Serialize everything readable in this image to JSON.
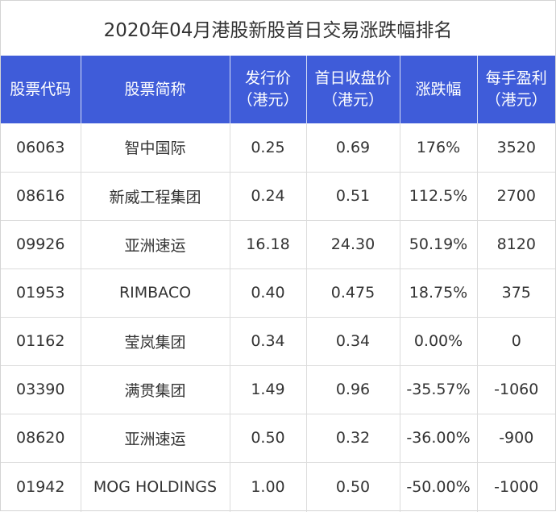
{
  "title": "2020年04月港股新股首日交易涨跌幅排名",
  "columns": [
    {
      "line1": "股票代码",
      "line2": ""
    },
    {
      "line1": "股票简称",
      "line2": ""
    },
    {
      "line1": "发行价",
      "line2": "（港元）"
    },
    {
      "line1": "首日收盘价",
      "line2": "（港元）"
    },
    {
      "line1": "涨跌幅",
      "line2": ""
    },
    {
      "line1": "每手盈利",
      "line2": "（港元）"
    }
  ],
  "rows": [
    {
      "code": "06063",
      "name": "智中国际",
      "issue_price": "0.25",
      "close_price": "0.69",
      "change": "176%",
      "profit_per_lot": "3520"
    },
    {
      "code": "08616",
      "name": "新威工程集团",
      "issue_price": "0.24",
      "close_price": "0.51",
      "change": "112.5%",
      "profit_per_lot": "2700"
    },
    {
      "code": "09926",
      "name": "亚洲速运",
      "issue_price": "16.18",
      "close_price": "24.30",
      "change": "50.19%",
      "profit_per_lot": "8120"
    },
    {
      "code": "01953",
      "name": "RIMBACO",
      "issue_price": "0.40",
      "close_price": "0.475",
      "change": "18.75%",
      "profit_per_lot": "375"
    },
    {
      "code": "01162",
      "name": "莹岚集团",
      "issue_price": "0.34",
      "close_price": "0.34",
      "change": "0.00%",
      "profit_per_lot": "0"
    },
    {
      "code": "03390",
      "name": "满贯集团",
      "issue_price": "1.49",
      "close_price": "0.96",
      "change": "-35.57%",
      "profit_per_lot": "-1060"
    },
    {
      "code": "08620",
      "name": "亚洲速运",
      "issue_price": "0.50",
      "close_price": "0.32",
      "change": "-36.00%",
      "profit_per_lot": "-900"
    },
    {
      "code": "01942",
      "name": "MOG HOLDINGS",
      "issue_price": "1.00",
      "close_price": "0.50",
      "change": "-50.00%",
      "profit_per_lot": "-1000"
    }
  ],
  "colors": {
    "header_bg": "#3f5cd9",
    "header_text": "#ffffff",
    "border": "#dcdcdc",
    "text": "#333333"
  }
}
